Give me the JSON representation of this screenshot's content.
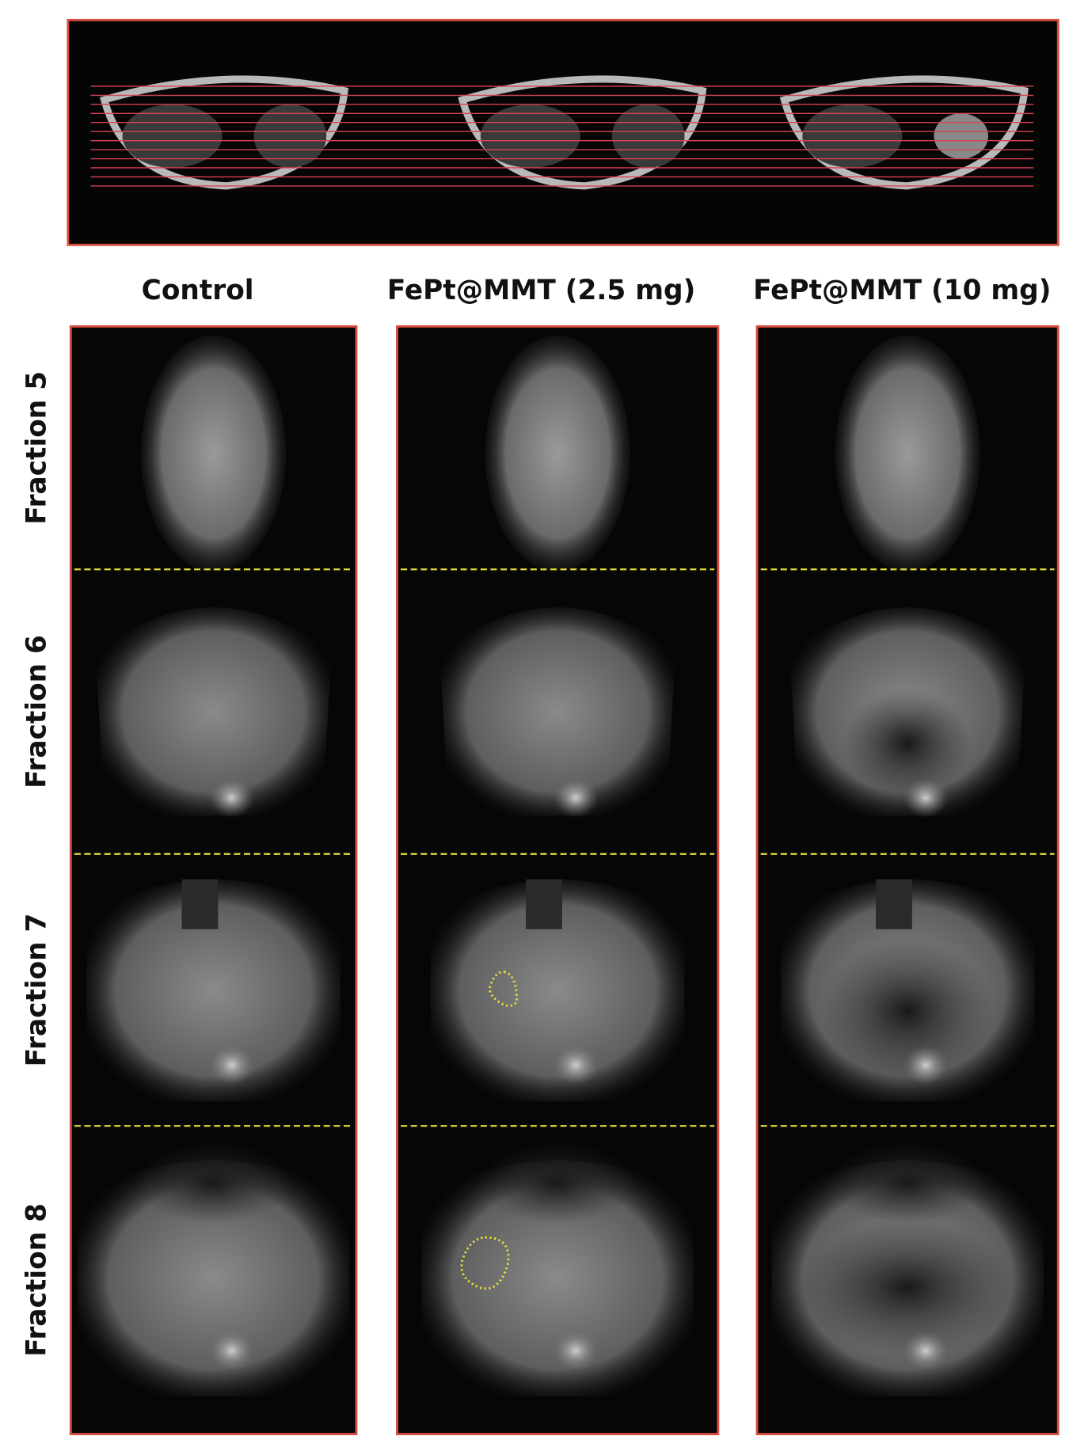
{
  "figure": {
    "column_labels": [
      "Control",
      "FePt@MMT (2.5 mg)",
      "FePt@MMT (10 mg)"
    ],
    "row_labels": [
      "Fraction 5",
      "Fraction 6",
      "Fraction 7",
      "Fraction 8"
    ]
  }
}
